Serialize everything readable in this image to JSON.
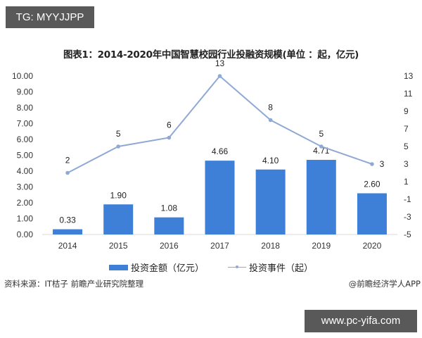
{
  "badges": {
    "top_left": "TG: MYYJJPP",
    "bottom_right": "www.pc-yifa.com"
  },
  "chart_data": {
    "type": "bar",
    "title": "图表1：2014-2020年中国智慧校园行业投融资规模(单位 ：起，亿元)",
    "categories": [
      "2014",
      "2015",
      "2016",
      "2017",
      "2018",
      "2019",
      "2020"
    ],
    "series": [
      {
        "name": "投资金额（亿元）",
        "type": "bar",
        "axis": "left",
        "color": "#3e7fd8",
        "values": [
          0.33,
          1.9,
          1.08,
          4.66,
          4.1,
          4.71,
          2.6
        ],
        "labels": [
          "0.33",
          "1.90",
          "1.08",
          "4.66",
          "4.10",
          "4.71",
          "2.60"
        ]
      },
      {
        "name": "投资事件（起）",
        "type": "line",
        "axis": "right",
        "color": "#8fa9d4",
        "values": [
          2,
          5,
          6,
          13,
          8,
          5,
          3
        ],
        "labels": [
          "2",
          "5",
          "6",
          "13",
          "8",
          "5",
          "3"
        ]
      }
    ],
    "left_axis": {
      "ylim": [
        0,
        10
      ],
      "ticks": [
        "0.00",
        "1.00",
        "2.00",
        "3.00",
        "4.00",
        "5.00",
        "6.00",
        "7.00",
        "8.00",
        "9.00",
        "10.00"
      ]
    },
    "right_axis": {
      "ylim": [
        -5,
        13
      ],
      "ticks": [
        "-5",
        "-3",
        "-1",
        "1",
        "3",
        "5",
        "7",
        "9",
        "11",
        "13"
      ]
    },
    "grid": false,
    "legend_position": "bottom"
  },
  "footer": {
    "source": "资料来源：IT桔子 前瞻产业研究院整理",
    "credit": "@前瞻经济学人APP"
  }
}
